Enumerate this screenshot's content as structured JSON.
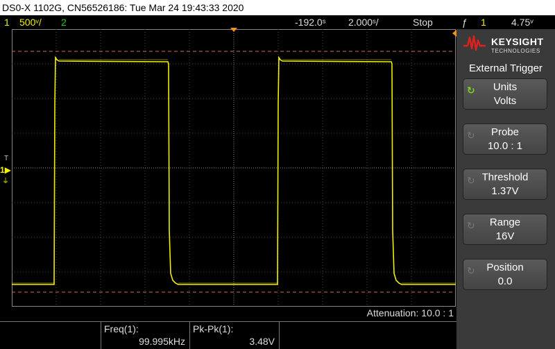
{
  "title": "DS0-X 1102G, CN56526186: Tue Mar 24 19:43:33 2020",
  "status": {
    "ch1_num": "1",
    "ch1_scale": "500ᵛ/",
    "ch2_num": "2",
    "time_offset": "-192.0ˢ",
    "timebase": "2.000ˢ/",
    "run_state": "Stop",
    "trigger_icon": "rising-edge-trigger-icon",
    "trigger_source": "1",
    "trigger_level": "4.75ᵛ"
  },
  "colors": {
    "ch1": "#f0f000",
    "ch2": "#22cc22",
    "ref_line": "#d07050",
    "grid": "#555555",
    "panel_bg": "#3a3a3a"
  },
  "bottom": {
    "attenuation": "Attenuation: 10.0 : 1",
    "meas1_label": "Freq(1):",
    "meas1_value": "99.995kHz",
    "meas2_label": "Pk-Pk(1):",
    "meas2_value": "3.48V"
  },
  "panel": {
    "brand": "KEYSIGHT",
    "brand_sub": "TECHNOLOGIES",
    "menu_title": "External Trigger",
    "softkeys": [
      {
        "label": "Units",
        "value": "Volts"
      },
      {
        "label": "Probe",
        "value": "10.0 : 1"
      },
      {
        "label": "Threshold",
        "value": "1.37V"
      },
      {
        "label": "Range",
        "value": "16V"
      },
      {
        "label": "Position",
        "value": "0.0"
      }
    ]
  },
  "markers": {
    "ch1_ground": "1",
    "trigger_level_marker": "T"
  }
}
